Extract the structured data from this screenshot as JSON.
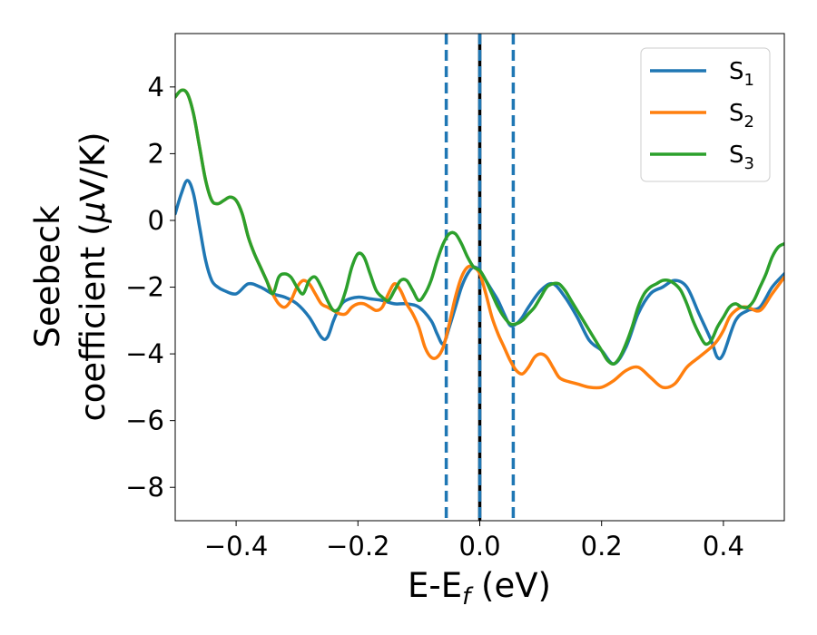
{
  "chart_data": {
    "type": "line",
    "title": "",
    "xlabel": {
      "base": "E-E",
      "sub": "f",
      "suffix": " (eV)"
    },
    "ylabel": {
      "line1": "Seebeck",
      "line2_prefix": "coefficient  (",
      "mu": "μ",
      "line2_suffix": "V/K)"
    },
    "xlim": [
      -0.5,
      0.5
    ],
    "ylim": [
      -9.0,
      5.6
    ],
    "xticks": [
      -0.4,
      -0.2,
      0.0,
      0.2,
      0.4
    ],
    "xtick_labels": [
      "−0.4",
      "−0.2",
      "0.0",
      "0.2",
      "0.4"
    ],
    "yticks": [
      -8,
      -6,
      -4,
      -2,
      0,
      2,
      4
    ],
    "ytick_labels": [
      "−8",
      "−6",
      "−4",
      "−2",
      "0",
      "2",
      "4"
    ],
    "grid": false,
    "legend_position": "top-right",
    "vlines": [
      {
        "x": -0.055,
        "style": "dashed",
        "color": "#1f77b4"
      },
      {
        "x": 0.0,
        "style": "solid",
        "color": "#000000"
      },
      {
        "x": 0.0,
        "style": "dashed",
        "color": "#1f77b4"
      },
      {
        "x": 0.055,
        "style": "dashed",
        "color": "#1f77b4"
      }
    ],
    "series": [
      {
        "name": "S",
        "sub": "1",
        "color": "#1f77b4",
        "x": [
          -0.5,
          -0.49,
          -0.48,
          -0.47,
          -0.46,
          -0.45,
          -0.44,
          -0.43,
          -0.42,
          -0.4,
          -0.38,
          -0.36,
          -0.34,
          -0.32,
          -0.3,
          -0.28,
          -0.26,
          -0.25,
          -0.24,
          -0.23,
          -0.22,
          -0.2,
          -0.18,
          -0.16,
          -0.14,
          -0.12,
          -0.1,
          -0.08,
          -0.07,
          -0.06,
          -0.05,
          -0.04,
          -0.03,
          -0.02,
          -0.01,
          0.0,
          0.01,
          0.02,
          0.03,
          0.04,
          0.05,
          0.06,
          0.07,
          0.08,
          0.1,
          0.12,
          0.14,
          0.16,
          0.18,
          0.2,
          0.22,
          0.24,
          0.26,
          0.28,
          0.3,
          0.32,
          0.34,
          0.36,
          0.38,
          0.39,
          0.4,
          0.42,
          0.44,
          0.46,
          0.48,
          0.5
        ],
        "y": [
          0.2,
          0.8,
          1.2,
          0.8,
          -0.2,
          -1.2,
          -1.8,
          -2.0,
          -2.1,
          -2.2,
          -1.9,
          -2.0,
          -2.2,
          -2.3,
          -2.5,
          -2.9,
          -3.5,
          -3.5,
          -3.0,
          -2.6,
          -2.4,
          -2.3,
          -2.35,
          -2.4,
          -2.5,
          -2.5,
          -2.6,
          -3.0,
          -3.4,
          -3.7,
          -3.2,
          -2.6,
          -2.0,
          -1.6,
          -1.4,
          -1.5,
          -1.8,
          -2.1,
          -2.4,
          -2.8,
          -3.15,
          -3.1,
          -2.9,
          -2.6,
          -2.1,
          -1.9,
          -2.3,
          -2.9,
          -3.6,
          -3.9,
          -4.3,
          -3.8,
          -2.8,
          -2.2,
          -2.0,
          -1.8,
          -2.0,
          -2.8,
          -3.6,
          -4.1,
          -4.0,
          -3.0,
          -2.7,
          -2.6,
          -2.0,
          -1.6
        ]
      },
      {
        "name": "S",
        "sub": "2",
        "color": "#ff7f0e",
        "x": [
          -0.5,
          -0.49,
          -0.48,
          -0.47,
          -0.46,
          -0.45,
          -0.44,
          -0.43,
          -0.42,
          -0.41,
          -0.4,
          -0.39,
          -0.38,
          -0.37,
          -0.36,
          -0.35,
          -0.34,
          -0.33,
          -0.32,
          -0.31,
          -0.3,
          -0.29,
          -0.28,
          -0.27,
          -0.26,
          -0.25,
          -0.24,
          -0.23,
          -0.22,
          -0.21,
          -0.2,
          -0.19,
          -0.18,
          -0.17,
          -0.16,
          -0.15,
          -0.14,
          -0.13,
          -0.12,
          -0.11,
          -0.1,
          -0.09,
          -0.08,
          -0.07,
          -0.06,
          -0.05,
          -0.04,
          -0.03,
          -0.02,
          -0.01,
          0.0,
          0.01,
          0.02,
          0.03,
          0.04,
          0.05,
          0.06,
          0.07,
          0.08,
          0.09,
          0.1,
          0.11,
          0.12,
          0.13,
          0.14,
          0.16,
          0.18,
          0.2,
          0.22,
          0.24,
          0.26,
          0.28,
          0.3,
          0.32,
          0.34,
          0.36,
          0.38,
          0.39,
          0.4,
          0.41,
          0.42,
          0.43,
          0.44,
          0.46,
          0.48,
          0.5
        ],
        "y": [
          3.7,
          3.9,
          3.8,
          3.2,
          2.2,
          1.2,
          0.6,
          0.5,
          0.6,
          0.7,
          0.6,
          0.2,
          -0.5,
          -1.0,
          -1.4,
          -1.8,
          -2.2,
          -2.5,
          -2.6,
          -2.4,
          -2.0,
          -1.8,
          -1.9,
          -2.2,
          -2.5,
          -2.6,
          -2.7,
          -2.8,
          -2.8,
          -2.6,
          -2.5,
          -2.5,
          -2.6,
          -2.7,
          -2.6,
          -2.2,
          -1.9,
          -2.1,
          -2.5,
          -2.8,
          -3.2,
          -3.8,
          -4.1,
          -4.1,
          -3.8,
          -3.1,
          -2.3,
          -1.7,
          -1.4,
          -1.4,
          -1.6,
          -2.2,
          -2.9,
          -3.4,
          -3.8,
          -4.2,
          -4.5,
          -4.6,
          -4.4,
          -4.1,
          -4.0,
          -4.1,
          -4.4,
          -4.7,
          -4.8,
          -4.9,
          -5.0,
          -5.0,
          -4.8,
          -4.5,
          -4.4,
          -4.7,
          -5.0,
          -4.9,
          -4.4,
          -4.1,
          -3.8,
          -3.6,
          -3.3,
          -2.9,
          -2.7,
          -2.6,
          -2.6,
          -2.7,
          -2.2,
          -1.7
        ]
      },
      {
        "name": "S",
        "sub": "3",
        "color": "#2ca02c",
        "x": [
          -0.5,
          -0.49,
          -0.48,
          -0.47,
          -0.46,
          -0.45,
          -0.44,
          -0.43,
          -0.42,
          -0.41,
          -0.4,
          -0.39,
          -0.38,
          -0.37,
          -0.36,
          -0.35,
          -0.34,
          -0.33,
          -0.32,
          -0.31,
          -0.3,
          -0.29,
          -0.28,
          -0.27,
          -0.26,
          -0.25,
          -0.24,
          -0.23,
          -0.22,
          -0.21,
          -0.2,
          -0.19,
          -0.18,
          -0.17,
          -0.16,
          -0.15,
          -0.14,
          -0.13,
          -0.12,
          -0.11,
          -0.1,
          -0.09,
          -0.08,
          -0.07,
          -0.06,
          -0.05,
          -0.04,
          -0.03,
          -0.02,
          -0.01,
          0.0,
          0.01,
          0.02,
          0.03,
          0.04,
          0.05,
          0.06,
          0.07,
          0.08,
          0.09,
          0.1,
          0.11,
          0.12,
          0.13,
          0.14,
          0.15,
          0.16,
          0.17,
          0.18,
          0.19,
          0.2,
          0.21,
          0.22,
          0.23,
          0.24,
          0.25,
          0.26,
          0.27,
          0.28,
          0.29,
          0.3,
          0.31,
          0.32,
          0.33,
          0.34,
          0.35,
          0.36,
          0.37,
          0.38,
          0.39,
          0.4,
          0.41,
          0.42,
          0.43,
          0.44,
          0.45,
          0.46,
          0.47,
          0.48,
          0.49,
          0.5
        ],
        "y": [
          3.7,
          3.9,
          3.8,
          3.2,
          2.2,
          1.2,
          0.6,
          0.5,
          0.6,
          0.7,
          0.6,
          0.2,
          -0.5,
          -1.0,
          -1.4,
          -1.8,
          -2.2,
          -1.7,
          -1.6,
          -1.7,
          -2.0,
          -2.2,
          -1.8,
          -1.7,
          -2.0,
          -2.4,
          -2.7,
          -2.6,
          -2.1,
          -1.4,
          -1.0,
          -1.1,
          -1.6,
          -2.1,
          -2.3,
          -2.4,
          -2.1,
          -1.8,
          -1.8,
          -2.1,
          -2.4,
          -2.2,
          -1.8,
          -1.2,
          -0.7,
          -0.4,
          -0.4,
          -0.7,
          -1.1,
          -1.4,
          -1.5,
          -1.8,
          -2.2,
          -2.6,
          -2.9,
          -3.1,
          -3.1,
          -3.0,
          -2.8,
          -2.6,
          -2.3,
          -2.0,
          -1.9,
          -1.9,
          -2.1,
          -2.4,
          -2.7,
          -3.0,
          -3.3,
          -3.6,
          -3.9,
          -4.2,
          -4.3,
          -4.1,
          -3.7,
          -3.2,
          -2.6,
          -2.2,
          -2.0,
          -1.9,
          -1.8,
          -1.8,
          -1.9,
          -2.1,
          -2.5,
          -3.0,
          -3.4,
          -3.7,
          -3.6,
          -3.2,
          -2.9,
          -2.6,
          -2.5,
          -2.6,
          -2.6,
          -2.4,
          -2.0,
          -1.6,
          -1.1,
          -0.8,
          -0.7
        ]
      }
    ]
  }
}
